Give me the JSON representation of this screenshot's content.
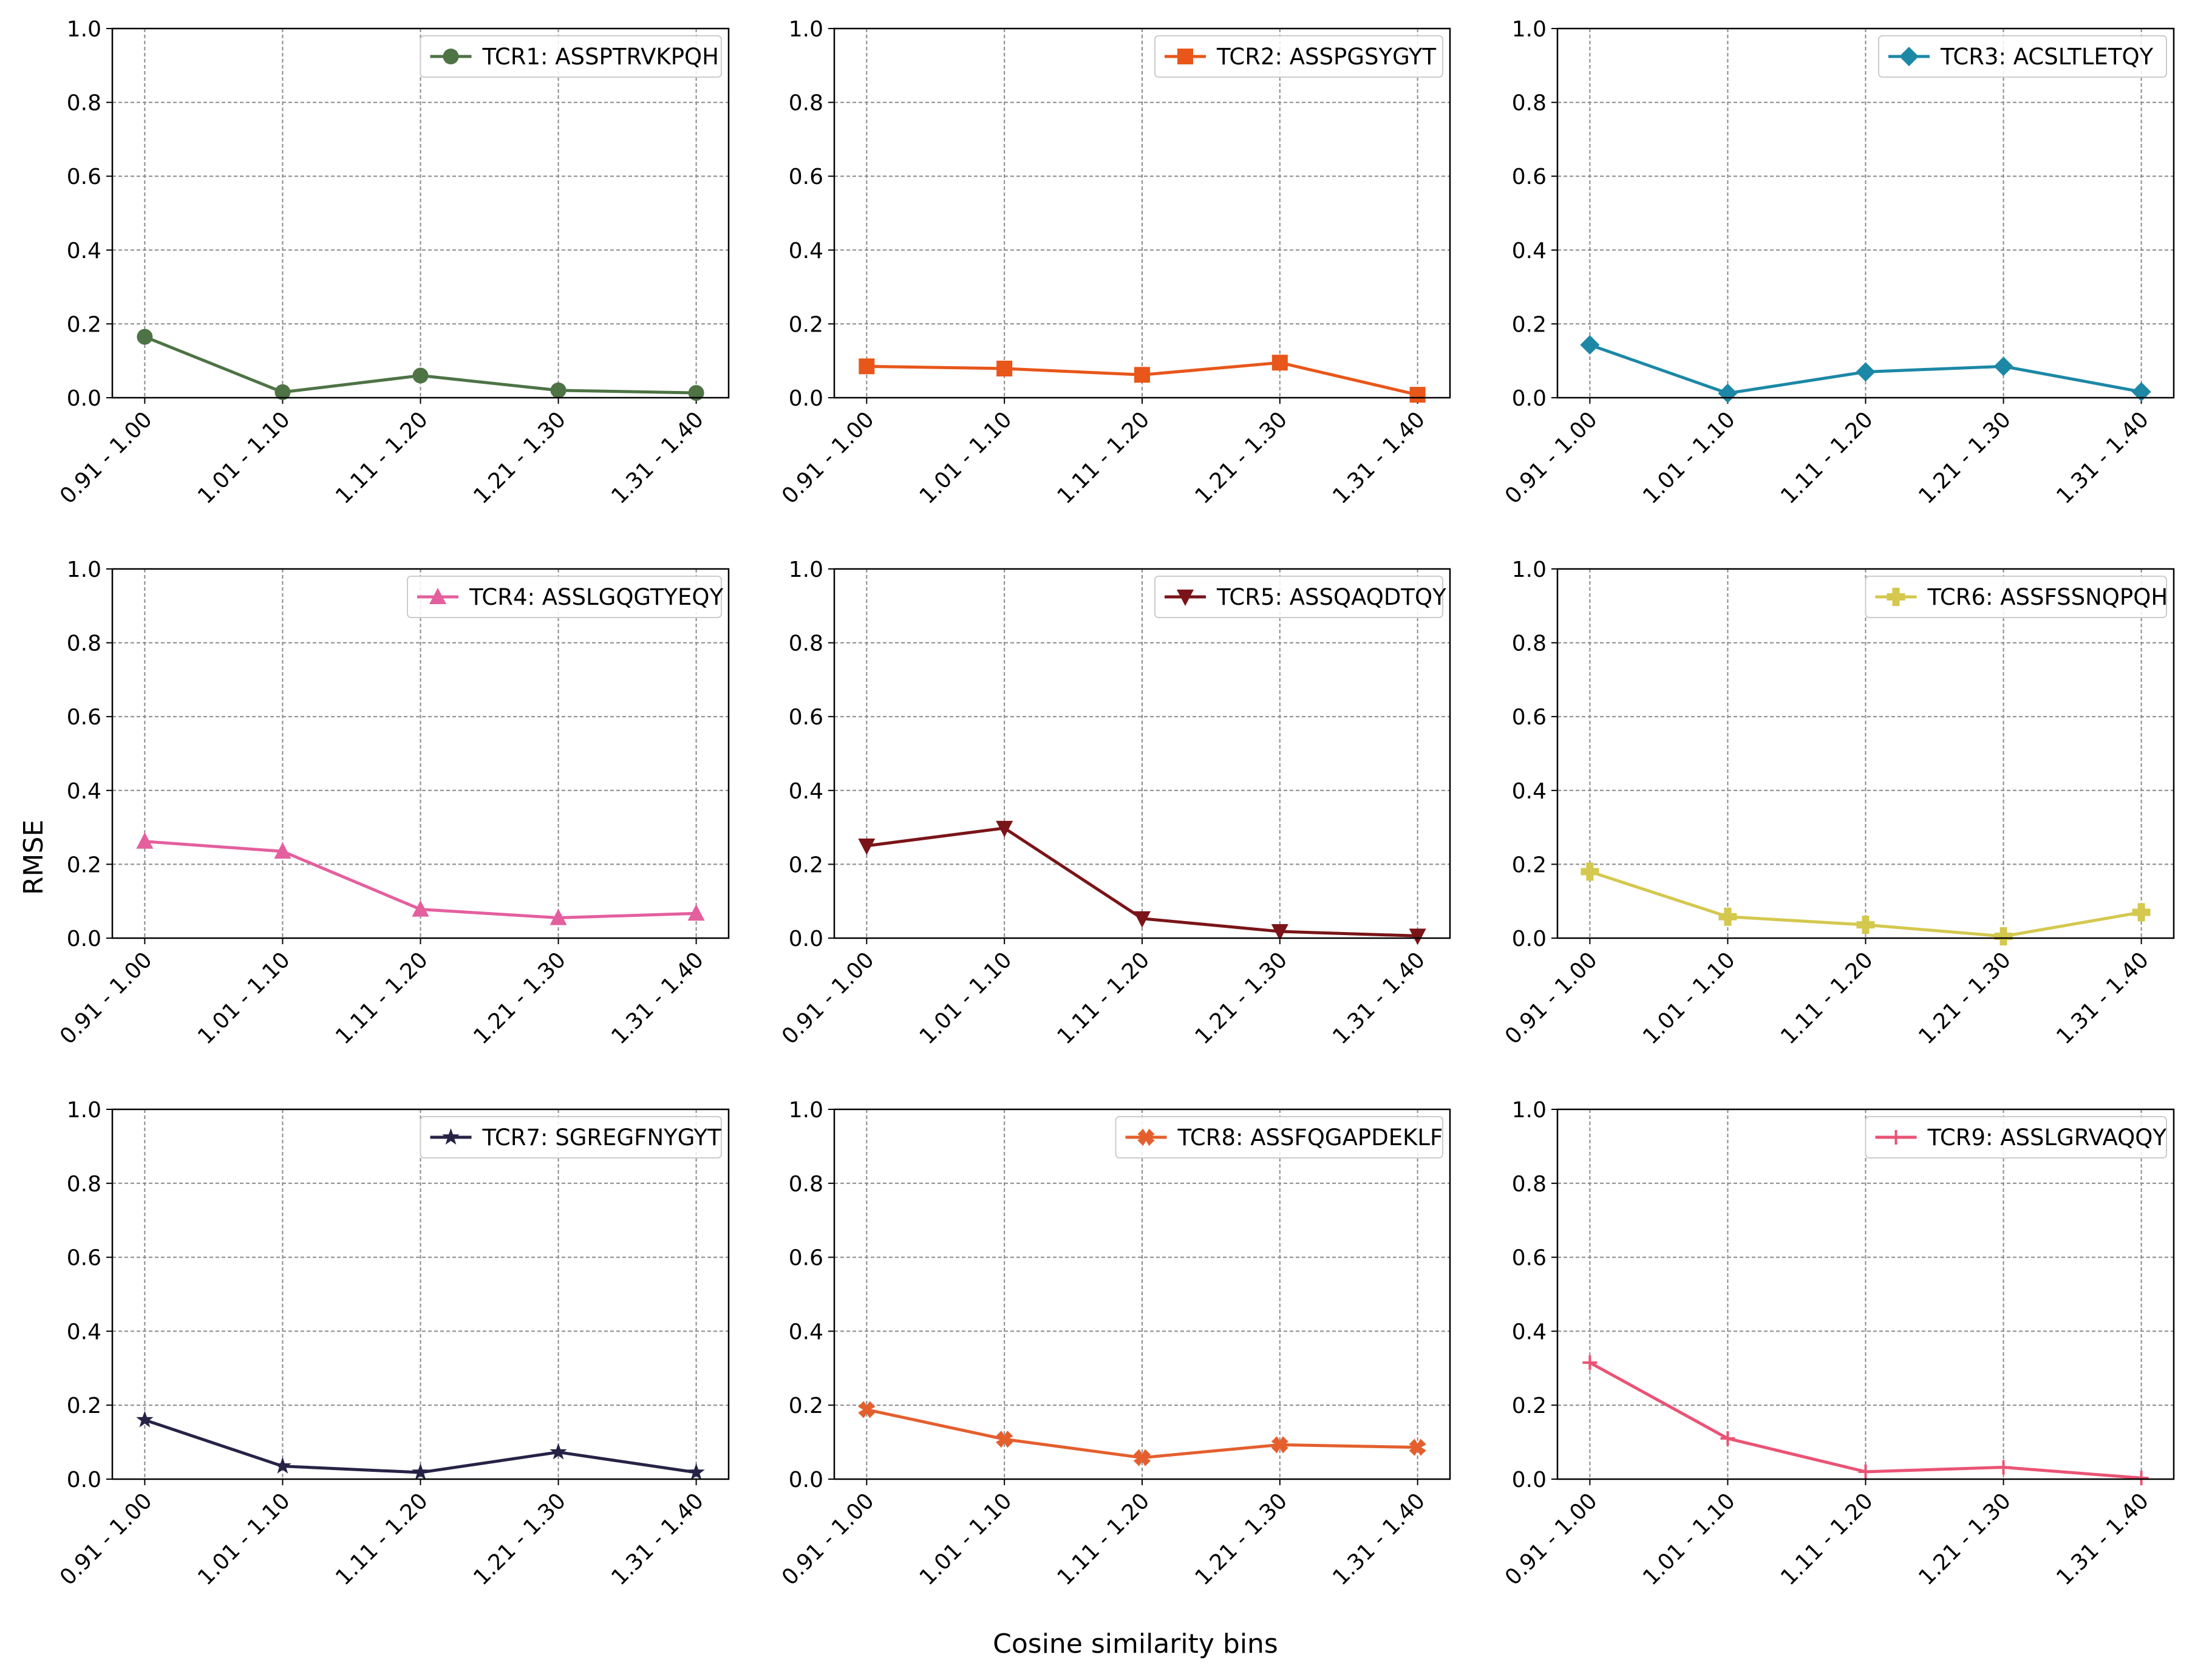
{
  "figure": {
    "xlabel": "Cosine similarity bins",
    "ylabel": "RMSE"
  },
  "chart_data": [
    {
      "type": "line",
      "categories": [
        "0.91 - 1.00",
        "1.01 - 1.10",
        "1.11 - 1.20",
        "1.21 - 1.30",
        "1.31 - 1.40"
      ],
      "series": [
        {
          "name": "TCR1: ASSPTRVKPQH",
          "values": [
            0.165,
            0.015,
            0.06,
            0.02,
            0.013
          ],
          "color": "#4e7345",
          "marker": "circle"
        }
      ],
      "ylim": [
        0,
        1.0
      ],
      "yticks": [
        "0.0",
        "0.2",
        "0.4",
        "0.6",
        "0.8",
        "1.0"
      ],
      "grid": true,
      "legend": "top-right"
    },
    {
      "type": "line",
      "categories": [
        "0.91 - 1.00",
        "1.01 - 1.10",
        "1.11 - 1.20",
        "1.21 - 1.30",
        "1.31 - 1.40"
      ],
      "series": [
        {
          "name": "TCR2: ASSPGSYGYT",
          "values": [
            0.085,
            0.079,
            0.062,
            0.095,
            0.008
          ],
          "color": "#e8561a",
          "marker": "square"
        }
      ],
      "ylim": [
        0,
        1.0
      ],
      "yticks": [
        "0.0",
        "0.2",
        "0.4",
        "0.6",
        "0.8",
        "1.0"
      ],
      "grid": true,
      "legend": "top-right"
    },
    {
      "type": "line",
      "categories": [
        "0.91 - 1.00",
        "1.01 - 1.10",
        "1.11 - 1.20",
        "1.21 - 1.30",
        "1.31 - 1.40"
      ],
      "series": [
        {
          "name": "TCR3: ACSLTLETQY",
          "values": [
            0.143,
            0.012,
            0.07,
            0.085,
            0.016
          ],
          "color": "#1c88a6",
          "marker": "diamond"
        }
      ],
      "ylim": [
        0,
        1.0
      ],
      "yticks": [
        "0.0",
        "0.2",
        "0.4",
        "0.6",
        "0.8",
        "1.0"
      ],
      "grid": true,
      "legend": "top-right"
    },
    {
      "type": "line",
      "categories": [
        "0.91 - 1.00",
        "1.01 - 1.10",
        "1.11 - 1.20",
        "1.21 - 1.30",
        "1.31 - 1.40"
      ],
      "series": [
        {
          "name": "TCR4: ASSLGQGTYEQY",
          "values": [
            0.262,
            0.235,
            0.078,
            0.055,
            0.067
          ],
          "color": "#e45f9e",
          "marker": "triangle-up"
        }
      ],
      "ylim": [
        0,
        1.0
      ],
      "yticks": [
        "0.0",
        "0.2",
        "0.4",
        "0.6",
        "0.8",
        "1.0"
      ],
      "grid": true,
      "legend": "top-right"
    },
    {
      "type": "line",
      "categories": [
        "0.91 - 1.00",
        "1.01 - 1.10",
        "1.11 - 1.20",
        "1.21 - 1.30",
        "1.31 - 1.40"
      ],
      "series": [
        {
          "name": "TCR5: ASSQAQDTQY",
          "values": [
            0.25,
            0.298,
            0.053,
            0.018,
            0.006
          ],
          "color": "#7a1418",
          "marker": "triangle-down"
        }
      ],
      "ylim": [
        0,
        1.0
      ],
      "yticks": [
        "0.0",
        "0.2",
        "0.4",
        "0.6",
        "0.8",
        "1.0"
      ],
      "grid": true,
      "legend": "top-right"
    },
    {
      "type": "line",
      "categories": [
        "0.91 - 1.00",
        "1.01 - 1.10",
        "1.11 - 1.20",
        "1.21 - 1.30",
        "1.31 - 1.40"
      ],
      "series": [
        {
          "name": "TCR6: ASSFSSNQPQH",
          "values": [
            0.18,
            0.058,
            0.036,
            0.005,
            0.07
          ],
          "color": "#d4c84e",
          "marker": "plus"
        }
      ],
      "ylim": [
        0,
        1.0
      ],
      "yticks": [
        "0.0",
        "0.2",
        "0.4",
        "0.6",
        "0.8",
        "1.0"
      ],
      "grid": true,
      "legend": "top-right"
    },
    {
      "type": "line",
      "categories": [
        "0.91 - 1.00",
        "1.01 - 1.10",
        "1.11 - 1.20",
        "1.21 - 1.30",
        "1.31 - 1.40"
      ],
      "series": [
        {
          "name": "TCR7: SGREGFNYGYT",
          "values": [
            0.16,
            0.035,
            0.018,
            0.073,
            0.018
          ],
          "color": "#262346",
          "marker": "star"
        }
      ],
      "ylim": [
        0,
        1.0
      ],
      "yticks": [
        "0.0",
        "0.2",
        "0.4",
        "0.6",
        "0.8",
        "1.0"
      ],
      "grid": true,
      "legend": "top-right"
    },
    {
      "type": "line",
      "categories": [
        "0.91 - 1.00",
        "1.01 - 1.10",
        "1.11 - 1.20",
        "1.21 - 1.30",
        "1.31 - 1.40"
      ],
      "series": [
        {
          "name": "TCR8: ASSFQGAPDEKLF",
          "values": [
            0.188,
            0.108,
            0.058,
            0.093,
            0.086
          ],
          "color": "#e45f2d",
          "marker": "x-filled"
        }
      ],
      "ylim": [
        0,
        1.0
      ],
      "yticks": [
        "0.0",
        "0.2",
        "0.4",
        "0.6",
        "0.8",
        "1.0"
      ],
      "grid": true,
      "legend": "top-right"
    },
    {
      "type": "line",
      "categories": [
        "0.91 - 1.00",
        "1.01 - 1.10",
        "1.11 - 1.20",
        "1.21 - 1.30",
        "1.31 - 1.40"
      ],
      "series": [
        {
          "name": "TCR9: ASSLGRVAQQY",
          "values": [
            0.315,
            0.11,
            0.02,
            0.032,
            0.003
          ],
          "color": "#ea5374",
          "marker": "thin-plus"
        }
      ],
      "ylim": [
        0,
        1.0
      ],
      "yticks": [
        "0.0",
        "0.2",
        "0.4",
        "0.6",
        "0.8",
        "1.0"
      ],
      "grid": true,
      "legend": "top-right"
    }
  ]
}
